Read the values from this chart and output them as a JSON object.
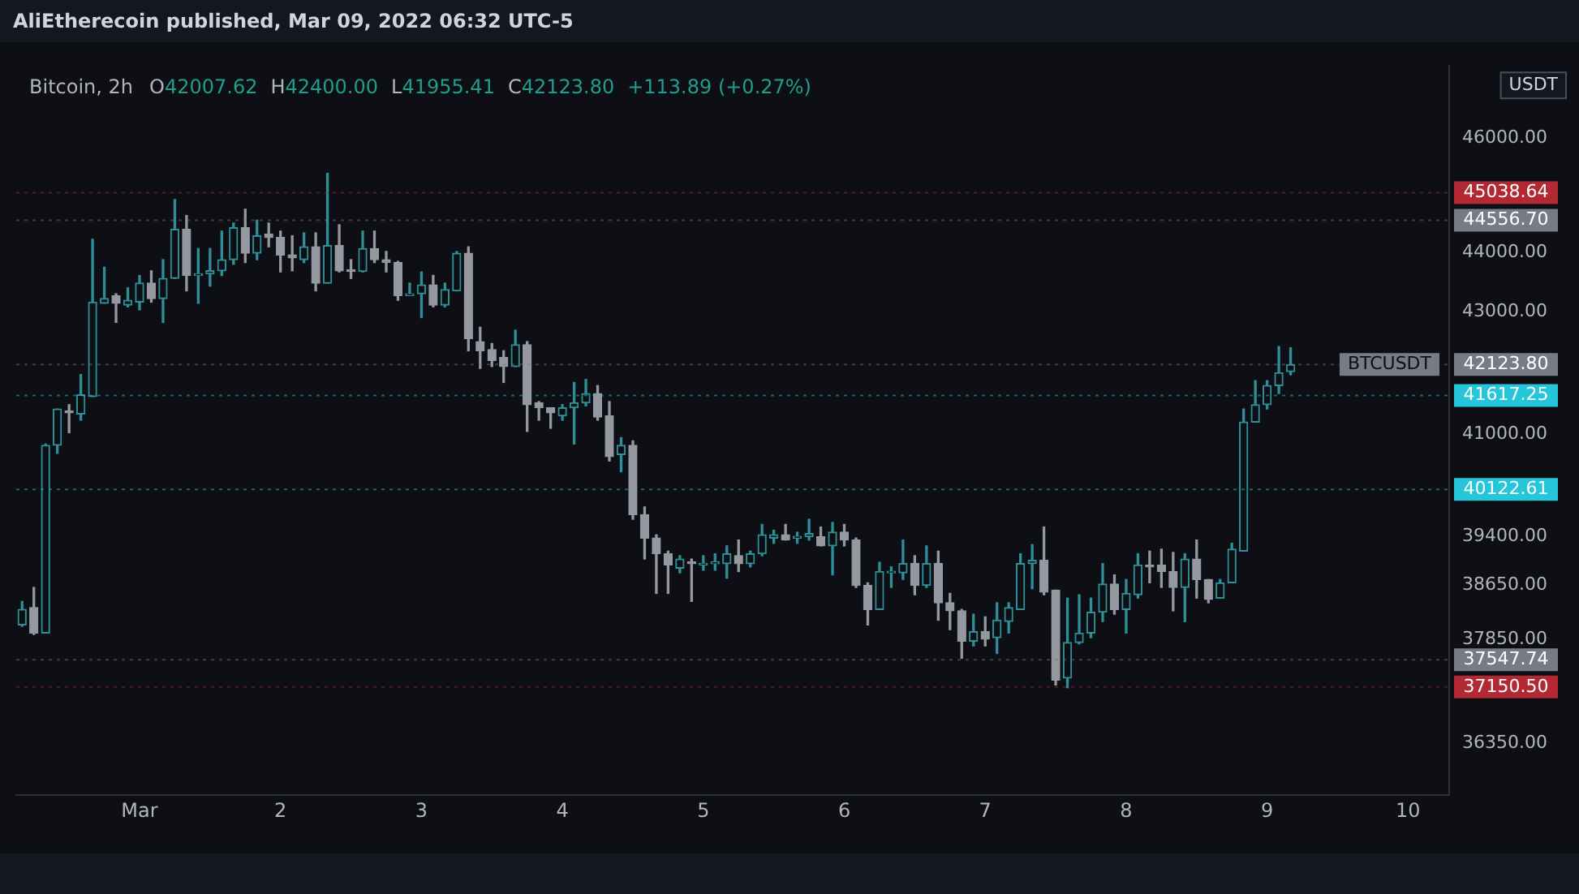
{
  "chart_data": {
    "type": "candlestick",
    "title": "AliEtherecoin published, Mar 09, 2022 06:32 UTC-5",
    "subtitle": "Bitcoin, 2h",
    "ylabel": "USDT",
    "annotations": [
      "O42007.62",
      "H42400.00",
      "L41955.41",
      "C42123.80",
      "+113.89 (+0.27%)",
      {
        "text": "BTCUSDT",
        "y": 42123.8
      }
    ],
    "x": [
      "2022-02-28T04:00",
      "2022-02-28T06:00",
      "2022-02-28T08:00",
      "2022-02-28T10:00",
      "2022-02-28T12:00",
      "2022-02-28T14:00",
      "2022-02-28T16:00",
      "2022-02-28T18:00",
      "2022-02-28T20:00",
      "2022-02-28T22:00",
      "2022-03-01T00:00",
      "2022-03-01T02:00",
      "2022-03-01T04:00",
      "2022-03-01T06:00",
      "2022-03-01T08:00",
      "2022-03-01T10:00",
      "2022-03-01T12:00",
      "2022-03-01T14:00",
      "2022-03-01T16:00",
      "2022-03-01T18:00",
      "2022-03-01T20:00",
      "2022-03-01T22:00",
      "2022-03-02T00:00",
      "2022-03-02T02:00",
      "2022-03-02T04:00",
      "2022-03-02T06:00",
      "2022-03-02T08:00",
      "2022-03-02T10:00",
      "2022-03-02T12:00",
      "2022-03-02T14:00",
      "2022-03-02T16:00",
      "2022-03-02T18:00",
      "2022-03-02T20:00",
      "2022-03-02T22:00",
      "2022-03-03T00:00",
      "2022-03-03T02:00",
      "2022-03-03T04:00",
      "2022-03-03T06:00",
      "2022-03-03T08:00",
      "2022-03-03T10:00",
      "2022-03-03T12:00",
      "2022-03-03T14:00",
      "2022-03-03T16:00",
      "2022-03-03T18:00",
      "2022-03-03T20:00",
      "2022-03-03T22:00",
      "2022-03-04T00:00",
      "2022-03-04T02:00",
      "2022-03-04T04:00",
      "2022-03-04T06:00",
      "2022-03-04T08:00",
      "2022-03-04T10:00",
      "2022-03-04T12:00",
      "2022-03-04T14:00",
      "2022-03-04T16:00",
      "2022-03-04T18:00",
      "2022-03-04T20:00",
      "2022-03-04T22:00",
      "2022-03-05T00:00",
      "2022-03-05T02:00",
      "2022-03-05T04:00",
      "2022-03-05T06:00",
      "2022-03-05T08:00",
      "2022-03-05T10:00",
      "2022-03-05T12:00",
      "2022-03-05T14:00",
      "2022-03-05T16:00",
      "2022-03-05T18:00",
      "2022-03-05T20:00",
      "2022-03-05T22:00",
      "2022-03-06T00:00",
      "2022-03-06T02:00",
      "2022-03-06T04:00",
      "2022-03-06T06:00",
      "2022-03-06T08:00",
      "2022-03-06T10:00",
      "2022-03-06T12:00",
      "2022-03-06T14:00",
      "2022-03-06T16:00",
      "2022-03-06T18:00",
      "2022-03-06T20:00",
      "2022-03-06T22:00",
      "2022-03-07T00:00",
      "2022-03-07T02:00",
      "2022-03-07T04:00",
      "2022-03-07T06:00",
      "2022-03-07T08:00",
      "2022-03-07T10:00",
      "2022-03-07T12:00",
      "2022-03-07T14:00",
      "2022-03-07T16:00",
      "2022-03-07T18:00",
      "2022-03-07T20:00",
      "2022-03-07T22:00",
      "2022-03-08T00:00",
      "2022-03-08T02:00",
      "2022-03-08T04:00",
      "2022-03-08T06:00",
      "2022-03-08T08:00",
      "2022-03-08T10:00",
      "2022-03-08T12:00",
      "2022-03-08T14:00",
      "2022-03-08T16:00",
      "2022-03-08T18:00",
      "2022-03-08T20:00",
      "2022-03-08T22:00",
      "2022-03-09T00:00",
      "2022-03-09T02:00",
      "2022-03-09T04:00"
    ],
    "ohlc": [
      [
        38060,
        38410,
        38040,
        38290
      ],
      [
        38320,
        38620,
        37920,
        37940
      ],
      [
        37940,
        40840,
        37940,
        40820
      ],
      [
        40820,
        41400,
        40690,
        41400
      ],
      [
        41370,
        41470,
        41020,
        41340
      ],
      [
        41320,
        41960,
        41220,
        41630
      ],
      [
        41600,
        44230,
        41600,
        43160
      ],
      [
        43140,
        43750,
        43140,
        43220
      ],
      [
        43270,
        43300,
        42820,
        43140
      ],
      [
        43110,
        43400,
        43080,
        43190
      ],
      [
        43160,
        43610,
        43030,
        43480
      ],
      [
        43480,
        43690,
        43160,
        43220
      ],
      [
        43220,
        43880,
        42820,
        43560
      ],
      [
        43560,
        44920,
        43560,
        44400
      ],
      [
        44400,
        44640,
        43350,
        43610
      ],
      [
        43610,
        44070,
        43140,
        43640
      ],
      [
        43640,
        44070,
        43430,
        43690
      ],
      [
        43690,
        44370,
        43610,
        43880
      ],
      [
        43880,
        44510,
        43800,
        44430
      ],
      [
        44430,
        44750,
        43830,
        43990
      ],
      [
        43990,
        44560,
        43880,
        44290
      ],
      [
        44320,
        44510,
        44100,
        44260
      ],
      [
        44260,
        44370,
        43670,
        43960
      ],
      [
        43960,
        44290,
        43690,
        43910
      ],
      [
        43880,
        44340,
        43830,
        44100
      ],
      [
        44100,
        44340,
        43350,
        43480
      ],
      [
        43480,
        45380,
        43480,
        44120
      ],
      [
        44120,
        44480,
        43670,
        43690
      ],
      [
        43690,
        43880,
        43560,
        43680
      ],
      [
        43680,
        44370,
        43670,
        44070
      ],
      [
        44070,
        44370,
        43830,
        43880
      ],
      [
        43880,
        44020,
        43670,
        43830
      ],
      [
        43830,
        43850,
        43190,
        43270
      ],
      [
        43270,
        43480,
        43270,
        43300
      ],
      [
        43300,
        43670,
        42900,
        43450
      ],
      [
        43450,
        43610,
        43080,
        43110
      ],
      [
        43110,
        43480,
        43080,
        43370
      ],
      [
        43350,
        44020,
        43350,
        43990
      ],
      [
        43990,
        44100,
        42350,
        42550
      ],
      [
        42500,
        42740,
        42060,
        42350
      ],
      [
        42370,
        42470,
        42090,
        42190
      ],
      [
        42240,
        42350,
        41830,
        42090
      ],
      [
        42090,
        42690,
        42090,
        42450
      ],
      [
        42450,
        42500,
        41040,
        41470
      ],
      [
        41500,
        41520,
        41220,
        41420
      ],
      [
        41420,
        41420,
        41090,
        41340
      ],
      [
        41290,
        41470,
        41220,
        41420
      ],
      [
        41420,
        41830,
        40840,
        41500
      ],
      [
        41500,
        41880,
        41450,
        41650
      ],
      [
        41650,
        41780,
        41220,
        41270
      ],
      [
        41290,
        41520,
        40570,
        40640
      ],
      [
        40670,
        40940,
        40400,
        40820
      ],
      [
        40820,
        40890,
        39660,
        39730
      ],
      [
        39730,
        39850,
        39050,
        39370
      ],
      [
        39370,
        39420,
        38530,
        39130
      ],
      [
        39130,
        39170,
        38530,
        38960
      ],
      [
        38910,
        39100,
        38840,
        39050
      ],
      [
        39000,
        39050,
        38410,
        38980
      ],
      [
        38960,
        39100,
        38880,
        38980
      ],
      [
        38980,
        39130,
        38880,
        39000
      ],
      [
        38980,
        39250,
        38760,
        39130
      ],
      [
        39100,
        39340,
        38860,
        38980
      ],
      [
        38980,
        39170,
        38930,
        39130
      ],
      [
        39130,
        39580,
        39100,
        39420
      ],
      [
        39370,
        39490,
        39290,
        39420
      ],
      [
        39420,
        39580,
        39340,
        39340
      ],
      [
        39370,
        39460,
        39290,
        39390
      ],
      [
        39390,
        39660,
        39340,
        39440
      ],
      [
        39390,
        39540,
        39250,
        39250
      ],
      [
        39250,
        39610,
        38810,
        39460
      ],
      [
        39460,
        39580,
        39250,
        39340
      ],
      [
        39340,
        39370,
        38620,
        38650
      ],
      [
        38650,
        38690,
        38060,
        38290
      ],
      [
        38290,
        39000,
        38290,
        38860
      ],
      [
        38840,
        38930,
        38620,
        38860
      ],
      [
        38840,
        39340,
        38740,
        38980
      ],
      [
        38980,
        39100,
        38510,
        38650
      ],
      [
        38650,
        39250,
        38620,
        38980
      ],
      [
        38980,
        39170,
        38130,
        38390
      ],
      [
        38390,
        38530,
        37990,
        38270
      ],
      [
        38270,
        38290,
        37570,
        37820
      ],
      [
        37820,
        38220,
        37750,
        37960
      ],
      [
        37960,
        38180,
        37750,
        37850
      ],
      [
        37870,
        38390,
        37640,
        38130
      ],
      [
        38110,
        38390,
        37940,
        38320
      ],
      [
        38290,
        39130,
        38290,
        38980
      ],
      [
        38980,
        39270,
        38600,
        39030
      ],
      [
        39030,
        39540,
        38510,
        38550
      ],
      [
        38580,
        38580,
        37180,
        37250
      ],
      [
        37280,
        38460,
        37140,
        37800
      ],
      [
        37800,
        38510,
        37780,
        37940
      ],
      [
        37940,
        38460,
        37870,
        38250
      ],
      [
        38250,
        38980,
        38110,
        38670
      ],
      [
        38670,
        38810,
        38220,
        38290
      ],
      [
        38290,
        38740,
        37940,
        38530
      ],
      [
        38510,
        39130,
        38460,
        38960
      ],
      [
        38960,
        39170,
        38690,
        38930
      ],
      [
        38960,
        39200,
        38620,
        38860
      ],
      [
        38860,
        39150,
        38270,
        38620
      ],
      [
        38620,
        39130,
        38110,
        39050
      ],
      [
        39050,
        39340,
        38460,
        38740
      ],
      [
        38740,
        38740,
        38390,
        38440
      ],
      [
        38460,
        38740,
        38460,
        38690
      ],
      [
        38690,
        39290,
        38690,
        39200
      ],
      [
        39170,
        41400,
        39170,
        41190
      ],
      [
        41190,
        41860,
        41190,
        41470
      ],
      [
        41470,
        41860,
        41400,
        41780
      ],
      [
        41780,
        42420,
        41650,
        41990
      ],
      [
        42007.62,
        42400.0,
        41955.41,
        42123.8
      ]
    ],
    "xlim": [
      "2022-02-28T03:00",
      "2022-03-10T07:00"
    ],
    "xticks": [
      {
        "value": "2022-03-01",
        "label": "Mar"
      },
      {
        "value": "2022-03-02",
        "label": "2"
      },
      {
        "value": "2022-03-03",
        "label": "3"
      },
      {
        "value": "2022-03-04",
        "label": "4"
      },
      {
        "value": "2022-03-05",
        "label": "5"
      },
      {
        "value": "2022-03-06",
        "label": "6"
      },
      {
        "value": "2022-03-07",
        "label": "7"
      },
      {
        "value": "2022-03-08",
        "label": "8"
      },
      {
        "value": "2022-03-09",
        "label": "9"
      },
      {
        "value": "2022-03-10",
        "label": "10"
      }
    ],
    "ylim": [
      35620,
      47320
    ],
    "yticks": [
      {
        "value": 46000,
        "label": "46000.00"
      },
      {
        "value": 44000,
        "label": "44000.00"
      },
      {
        "value": 43000,
        "label": "43000.00"
      },
      {
        "value": 41000,
        "label": "41000.00"
      },
      {
        "value": 39400,
        "label": "39400.00"
      },
      {
        "value": 38650,
        "label": "38650.00"
      },
      {
        "value": 37850,
        "label": "37850.00"
      },
      {
        "value": 36350,
        "label": "36350.00"
      }
    ],
    "log": true,
    "ref_lines": [
      {
        "axis": "y",
        "value": 45038.64,
        "label": "45038.64",
        "color": "#b22833"
      },
      {
        "axis": "y",
        "value": 44556.7,
        "label": "44556.70",
        "color": "#787b86"
      },
      {
        "axis": "y",
        "value": 42123.8,
        "label": "42123.80",
        "color": "#787b86"
      },
      {
        "axis": "y",
        "value": 41617.25,
        "label": "41617.25",
        "color": "#26c6da"
      },
      {
        "axis": "y",
        "value": 40122.61,
        "label": "40122.61",
        "color": "#26c6da"
      },
      {
        "axis": "y",
        "value": 37547.74,
        "label": "37547.74",
        "color": "#787b86"
      },
      {
        "axis": "y",
        "value": 37150.5,
        "label": "37150.50",
        "color": "#b22833"
      }
    ]
  }
}
